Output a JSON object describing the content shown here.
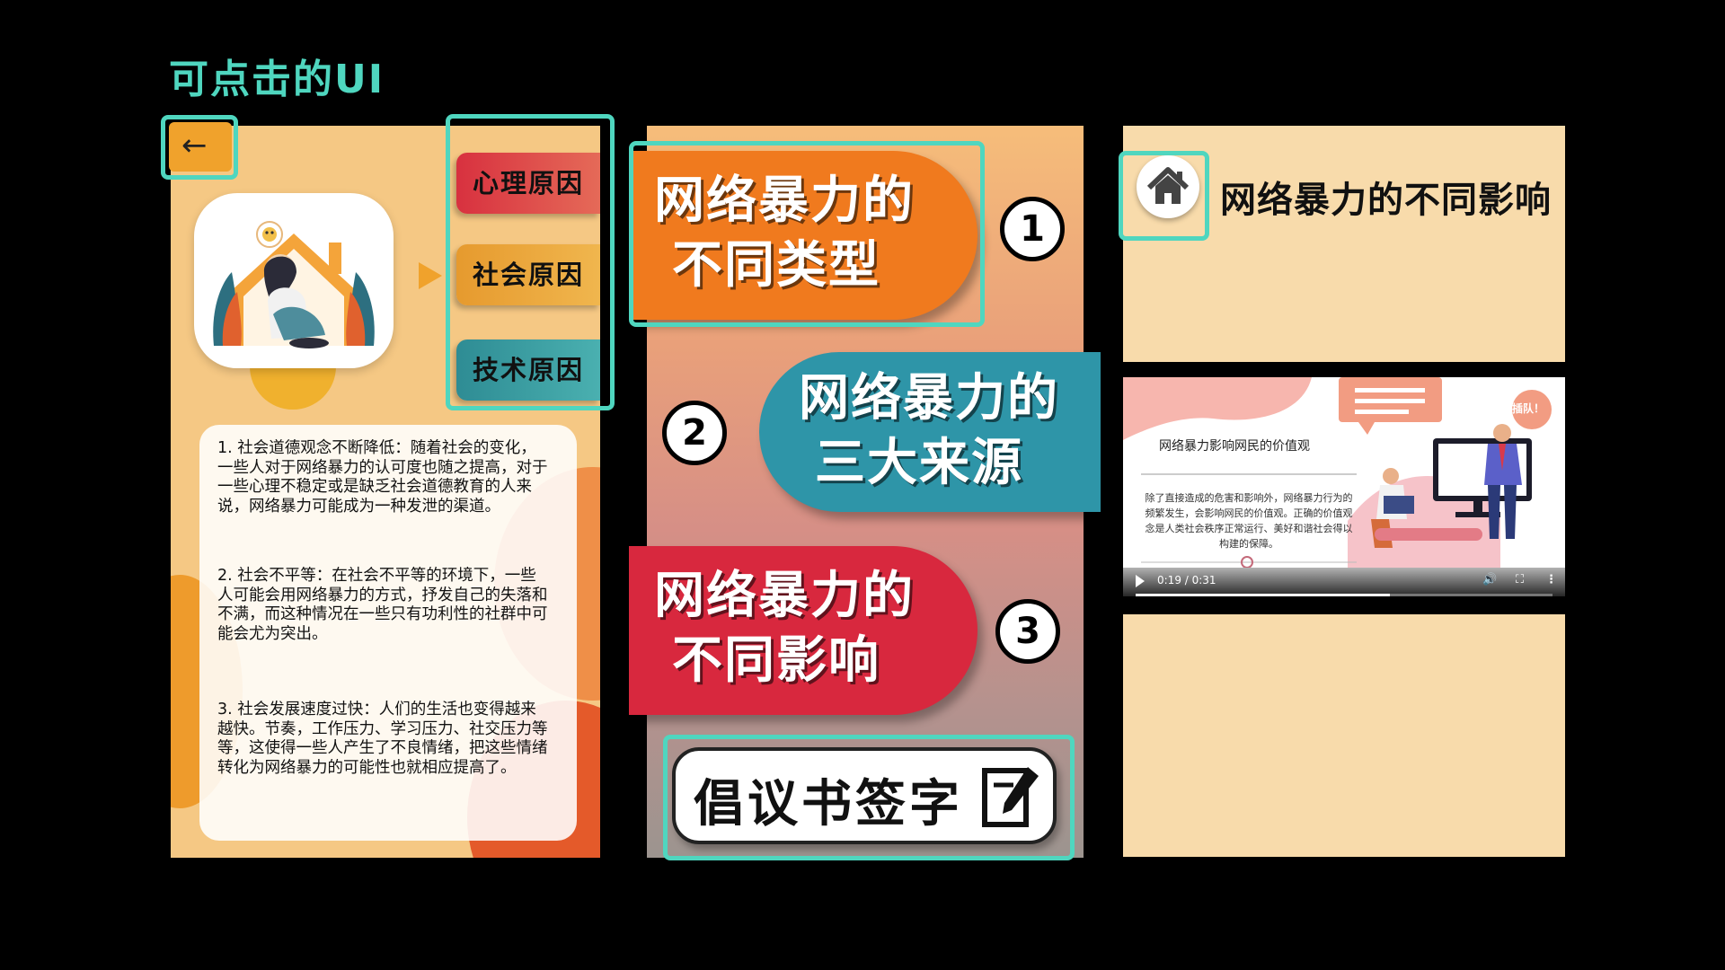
{
  "page_title": "可点击的UI",
  "panel1": {
    "back_icon": "←",
    "causes": [
      "心理原因",
      "社会原因",
      "技术原因"
    ],
    "paragraphs": [
      "1. 社会道德观念不断降低：随着社会的变化，一些人对于网络暴力的认可度也随之提高，对于一些心理不稳定或是缺乏社会道德教育的人来说，网络暴力可能成为一种发泄的渠道。",
      "2. 社会不平等：在社会不平等的环境下，一些人可能会用网络暴力的方式，抒发自己的失落和不满，而这种情况在一些只有功利性的社群中可能会尤为突出。",
      "3. 社会发展速度过快：人们的生活也变得越来越快。节奏，工作压力、学习压力、社交压力等等，这使得一些人产生了不良情绪，把这些情绪转化为网络暴力的可能性也就相应提高了。"
    ]
  },
  "panel2": {
    "menu": [
      {
        "line1": "网络暴力的",
        "line2": "不同类型",
        "number": "1"
      },
      {
        "line1": "网络暴力的",
        "line2": "三大来源",
        "number": "2"
      },
      {
        "line1": "网络暴力的",
        "line2": "不同影响",
        "number": "3"
      }
    ],
    "sign_label": "倡议书签字"
  },
  "panel3": {
    "title": "网络暴力的不同影响",
    "video": {
      "slide_title": "网络暴力影响网民的价值观",
      "slide_body": "除了直接造成的危害和影响外，网络暴力行为的频繁发生，会影响网民的价值观。正确的价值观念是人类社会秩序正常运行、美好和谐社会得以构建的保障。",
      "badge": "插队！",
      "time": "0:19 / 0:31",
      "progress": 0.61
    }
  },
  "colors": {
    "highlight": "#4fd6bf",
    "orange": "#f07a1e",
    "teal": "#2e95a8",
    "red": "#d8283e"
  }
}
